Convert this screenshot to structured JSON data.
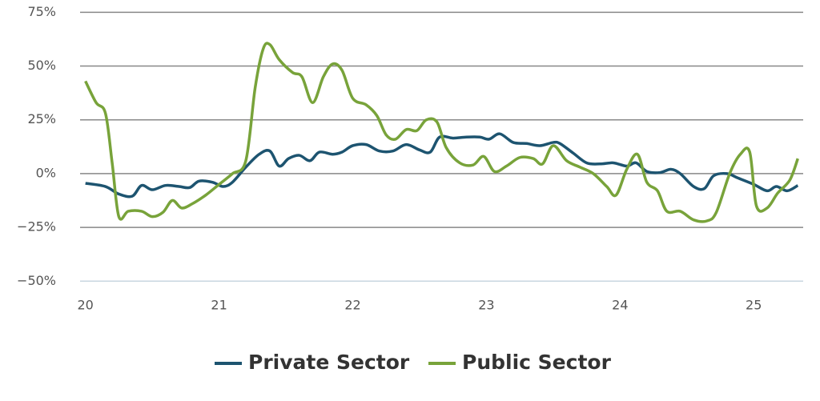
{
  "chart_data": {
    "type": "line",
    "xlim": [
      19.96,
      25.37
    ],
    "xticks": [
      20,
      21,
      22,
      23,
      24,
      25
    ],
    "ylim": [
      -54,
      77
    ],
    "yticks": [
      {
        "value": 75,
        "label": "75%"
      },
      {
        "value": 50,
        "label": "50%"
      },
      {
        "value": 25,
        "label": "25%"
      },
      {
        "value": 0,
        "label": "0%"
      },
      {
        "value": -25,
        "label": "−25%"
      },
      {
        "value": -50,
        "label": "−50%"
      }
    ],
    "grid": true,
    "legend": "bottom",
    "series": [
      {
        "name": "Private Sector",
        "color": "#1d5470",
        "x": [
          20.0,
          20.15,
          20.25,
          20.35,
          20.42,
          20.5,
          20.6,
          20.7,
          20.78,
          20.85,
          20.95,
          21.03,
          21.1,
          21.2,
          21.3,
          21.38,
          21.45,
          21.52,
          21.6,
          21.68,
          21.75,
          21.85,
          21.92,
          22.0,
          22.1,
          22.2,
          22.3,
          22.4,
          22.5,
          22.58,
          22.65,
          22.75,
          22.85,
          22.95,
          23.02,
          23.1,
          23.2,
          23.3,
          23.4,
          23.5,
          23.55,
          23.65,
          23.75,
          23.85,
          23.95,
          24.05,
          24.12,
          24.2,
          24.3,
          24.38,
          24.45,
          24.55,
          24.63,
          24.7,
          24.8,
          24.88,
          25.0,
          25.1,
          25.17,
          25.25,
          25.33
        ],
        "values": [
          -4.5,
          -6,
          -9.5,
          -10.5,
          -5.5,
          -7.5,
          -5.5,
          -6,
          -6.5,
          -3.5,
          -4,
          -6,
          -4,
          3,
          9,
          10.5,
          3.5,
          7,
          8.5,
          6,
          10,
          9,
          10,
          13,
          13.5,
          10.5,
          10.5,
          13.5,
          11,
          10,
          17,
          16.5,
          17,
          17,
          16,
          18.5,
          14.5,
          14,
          13,
          14.5,
          14,
          9.5,
          5,
          4.5,
          5,
          3.5,
          5,
          1,
          0.5,
          2,
          0,
          -6,
          -7,
          -1,
          0,
          -2,
          -5,
          -8,
          -6,
          -8,
          -5.5
        ]
      },
      {
        "name": "Public Sector",
        "color": "#78a33a",
        "x": [
          20.0,
          20.08,
          20.15,
          20.2,
          20.25,
          20.32,
          20.42,
          20.5,
          20.58,
          20.65,
          20.72,
          20.8,
          20.9,
          21.0,
          21.1,
          21.2,
          21.27,
          21.33,
          21.38,
          21.45,
          21.55,
          21.62,
          21.7,
          21.78,
          21.85,
          21.92,
          22.0,
          22.1,
          22.18,
          22.25,
          22.32,
          22.4,
          22.48,
          22.55,
          22.63,
          22.7,
          22.8,
          22.9,
          22.98,
          23.06,
          23.15,
          23.25,
          23.35,
          23.42,
          23.5,
          23.6,
          23.7,
          23.8,
          23.9,
          23.97,
          24.05,
          24.13,
          24.2,
          24.28,
          24.35,
          24.45,
          24.55,
          24.65,
          24.72,
          24.82,
          24.9,
          24.97,
          25.02,
          25.1,
          25.18,
          25.27,
          25.33
        ],
        "values": [
          43,
          33,
          28,
          5,
          -20,
          -17.5,
          -17.5,
          -20,
          -18,
          -12.5,
          -16,
          -14,
          -10,
          -5,
          0,
          6,
          40,
          58,
          60,
          53,
          47,
          45,
          33,
          45,
          51,
          48,
          35,
          32,
          27,
          18,
          16,
          20.5,
          20,
          25,
          24,
          12,
          5,
          4,
          8,
          1,
          3.5,
          7.5,
          7,
          4.5,
          13,
          6,
          3,
          0,
          -6,
          -10,
          2,
          9,
          -4,
          -8,
          -17.5,
          -17.5,
          -21.5,
          -22,
          -18,
          0,
          9,
          10,
          -15,
          -16,
          -9,
          -3,
          7
        ]
      }
    ]
  }
}
